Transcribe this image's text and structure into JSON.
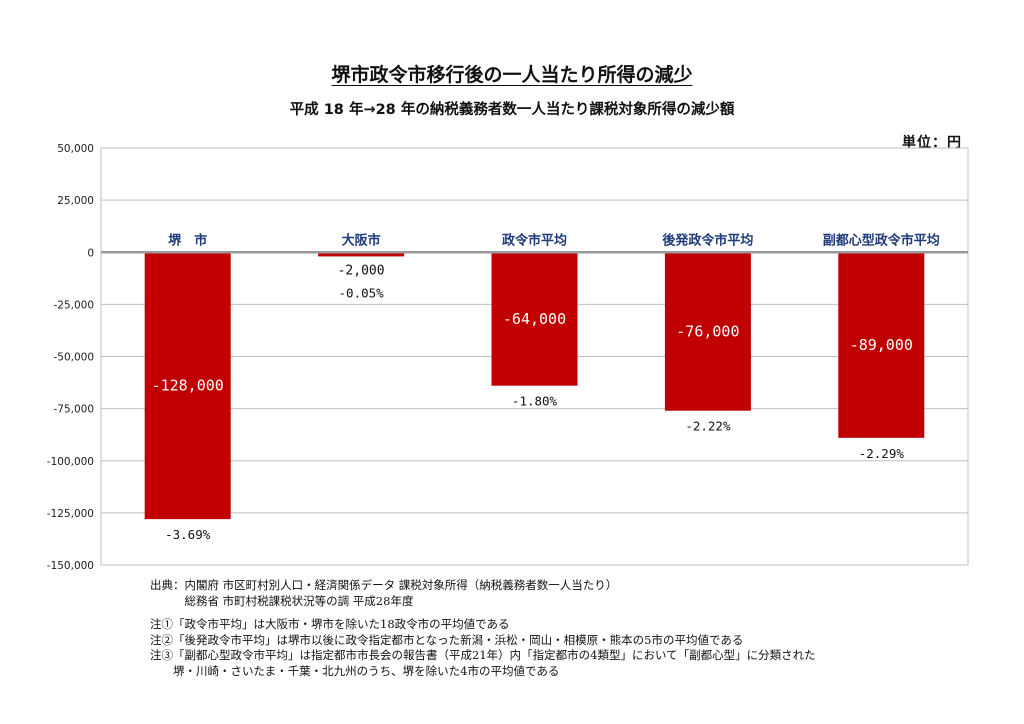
{
  "header": {
    "title": "堺市政令市移行後の一人当たり所得の減少",
    "subtitle": "平成 18 年→28 年の納税義務者数一人当たり課税対象所得の減少額",
    "unit": "単位：円"
  },
  "chart_data": {
    "type": "bar",
    "title": "堺市政令市移行後の一人当たり所得の減少",
    "xlabel": "",
    "ylabel": "",
    "ylim": [
      -150000,
      50000
    ],
    "yticks": [
      50000,
      25000,
      0,
      -25000,
      -50000,
      -75000,
      -100000,
      -125000,
      -150000
    ],
    "ytick_labels": [
      "50,000",
      "25,000",
      "0",
      "-25,000",
      "-50,000",
      "-75,000",
      "-100,000",
      "-125,000",
      "-150,000"
    ],
    "categories": [
      "堺　市",
      "大阪市",
      "政令市平均",
      "後発政令市平均",
      "副都心型政令市平均"
    ],
    "values": [
      -128000,
      -2000,
      -64000,
      -76000,
      -89000
    ],
    "value_labels": [
      "-128,000",
      "-2,000",
      "-64,000",
      "-76,000",
      "-89,000"
    ],
    "percent_labels": [
      "-3.69%",
      "-0.05%",
      "-1.80%",
      "-2.22%",
      "-2.29%"
    ],
    "bar_color": "#c00000",
    "category_label_color": "#1f3b7a",
    "grid": true
  },
  "notes": {
    "source_line1": "出典：内閣府 市区町村別人口・経済関係データ 課税対象所得（納税義務者数一人当たり）",
    "source_line2": "　　　総務省 市町村税課税状況等の調 平成28年度",
    "note1": "注①「政令市平均」は大阪市・堺市を除いた18政令市の平均値である",
    "note2": "注②「後発政令市平均」は堺市以後に政令指定都市となった新潟・浜松・岡山・相模原・熊本の5市の平均値である",
    "note3": "注③「副都心型政令市平均」は指定都市市長会の報告書（平成21年）内「指定都市の4類型」において「副都心型」に分類された",
    "note3_cont": "　　堺・川崎・さいたま・千葉・北九州のうち、堺を除いた4市の平均値である"
  }
}
